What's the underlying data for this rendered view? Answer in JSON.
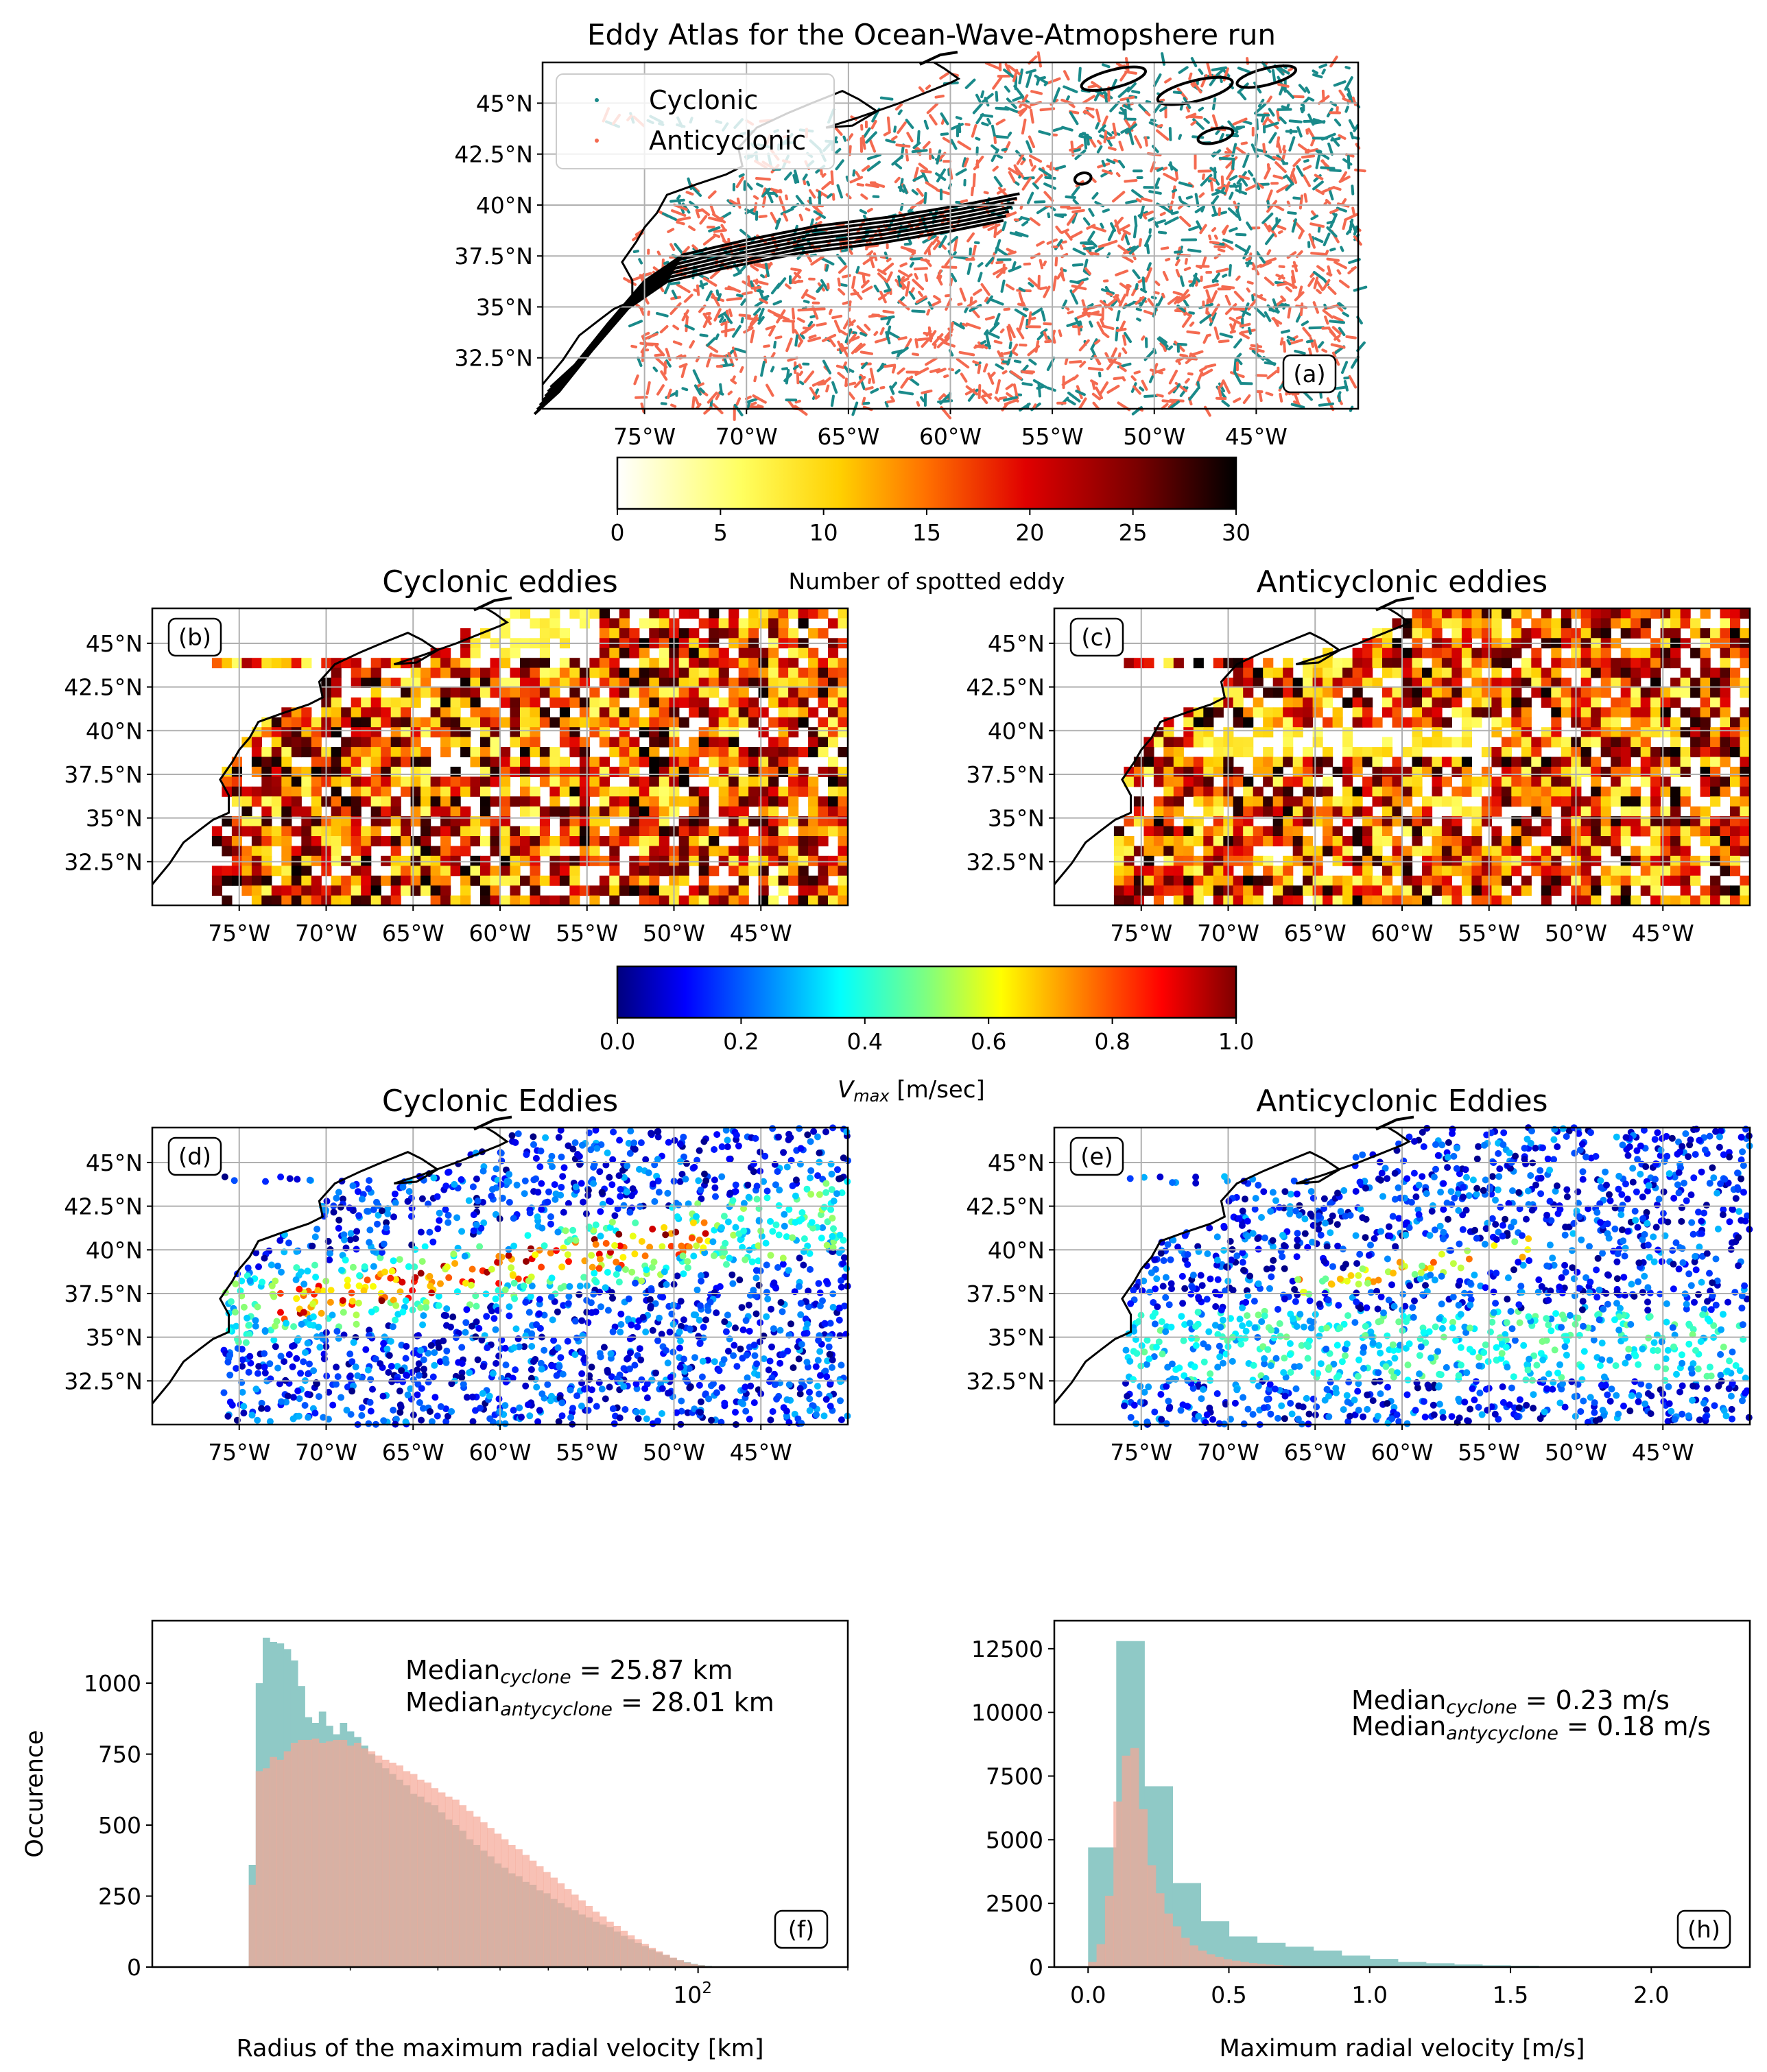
{
  "figure": {
    "title": "Eddy Atlas for the Ocean-Wave-Atmopshere run"
  },
  "colors": {
    "cyclonic": "#1a8a8a",
    "anticyclonic": "#f46a50",
    "hist_cyclone": "#8fc9c6",
    "hist_anticyclone": "#f5a796",
    "overlap": "#b7a092"
  },
  "map_axes": {
    "lon_ticks": [
      "75°W",
      "70°W",
      "65°W",
      "60°W",
      "55°W",
      "50°W",
      "45°W"
    ],
    "lat_ticks": [
      "45°N",
      "42.5°N",
      "40°N",
      "37.5°N",
      "35°N",
      "32.5°N"
    ],
    "lon_range": [
      -80,
      -40
    ],
    "lat_range": [
      30,
      47
    ]
  },
  "panel_a": {
    "label": "(a)",
    "legend": [
      "Cyclonic",
      "Anticyclonic"
    ]
  },
  "colorbar_count": {
    "label": "Number of spotted eddy",
    "ticks": [
      "0",
      "5",
      "10",
      "15",
      "20",
      "25",
      "30"
    ],
    "range": [
      0,
      30
    ],
    "colormap": "hot_r"
  },
  "panel_b": {
    "title": "Cyclonic eddies",
    "label": "(b)"
  },
  "panel_c": {
    "title": "Anticyclonic eddies",
    "label": "(c)"
  },
  "colorbar_vmax": {
    "label_main": "V",
    "label_sub": "max",
    "label_unit": " [m/sec]",
    "ticks": [
      "0.0",
      "0.2",
      "0.4",
      "0.6",
      "0.8",
      "1.0"
    ],
    "range": [
      0,
      1
    ],
    "colormap": "jet"
  },
  "panel_d": {
    "title": "Cyclonic Eddies",
    "label": "(d)"
  },
  "panel_e": {
    "title": "Anticyclonic Eddies",
    "label": "(e)"
  },
  "chart_data": [
    {
      "type": "bar",
      "panel": "(f)",
      "xlabel": "Radius of the maximum radial velocity [km]",
      "ylabel": "Occurence",
      "xscale": "log",
      "x_tick_label": "10",
      "x_tick_label_exp": "2",
      "x_tick_value": 100,
      "xlim": [
        8,
        200
      ],
      "ylim": [
        0,
        1220
      ],
      "yticks": [
        "0",
        "250",
        "500",
        "750",
        "1000"
      ],
      "annotation_cyclone_prefix": "Median",
      "annotation_cyclone_sub": "cyclone",
      "annotation_cyclone_value": " = 25.87 km",
      "annotation_anticyclone_prefix": "Median",
      "annotation_anticyclone_sub": "antycyclone",
      "annotation_anticyclone_value": " = 28.01 km",
      "x_range": [
        12.5,
        110
      ],
      "series": [
        {
          "name": "Cyclonic",
          "values": [
            360,
            1000,
            1160,
            1145,
            1140,
            1120,
            1080,
            990,
            880,
            860,
            900,
            850,
            820,
            860,
            830,
            810,
            780,
            750,
            720,
            700,
            680,
            660,
            640,
            610,
            600,
            580,
            570,
            545,
            520,
            500,
            480,
            450,
            430,
            410,
            390,
            365,
            350,
            330,
            320,
            300,
            290,
            270,
            260,
            240,
            225,
            210,
            200,
            185,
            175,
            160,
            150,
            140,
            125,
            110,
            98,
            85,
            74,
            62,
            52,
            42,
            32,
            24,
            17,
            11,
            7,
            4,
            2
          ]
        },
        {
          "name": "Anticyclonic",
          "values": [
            290,
            690,
            700,
            740,
            730,
            760,
            790,
            800,
            800,
            805,
            790,
            795,
            800,
            800,
            780,
            790,
            770,
            760,
            745,
            730,
            720,
            710,
            690,
            680,
            660,
            650,
            630,
            615,
            600,
            590,
            570,
            550,
            530,
            510,
            490,
            470,
            450,
            430,
            415,
            395,
            375,
            355,
            335,
            315,
            295,
            275,
            255,
            235,
            215,
            195,
            178,
            160,
            145,
            128,
            112,
            98,
            82,
            68,
            55,
            44,
            33,
            24,
            16,
            10,
            6,
            3,
            1
          ]
        }
      ]
    },
    {
      "type": "bar",
      "panel": "(h)",
      "xlabel": "Maximum radial velocity [m/s]",
      "ylabel": "",
      "xlim": [
        -0.12,
        2.35
      ],
      "ylim": [
        0,
        13600
      ],
      "xticks": [
        "0.0",
        "0.5",
        "1.0",
        "1.5",
        "2.0"
      ],
      "yticks": [
        "0",
        "2500",
        "5000",
        "7500",
        "10000",
        "12500"
      ],
      "annotation_cyclone_prefix": "Median",
      "annotation_cyclone_sub": "cyclone",
      "annotation_cyclone_value": " = 0.23 m/s",
      "annotation_anticyclone_prefix": "Median",
      "annotation_anticyclone_sub": "antycyclone",
      "annotation_anticyclone_value": " = 0.18 m/s",
      "series": [
        {
          "name": "Cyclonic",
          "bin_width": 0.1,
          "bins_start": [
            0.0,
            0.1,
            0.2,
            0.3,
            0.4,
            0.5,
            0.6,
            0.7,
            0.8,
            0.9,
            1.0,
            1.1,
            1.2,
            1.3,
            1.4,
            1.5,
            1.6,
            1.7,
            1.8,
            1.9,
            2.0,
            2.1
          ],
          "values": [
            4700,
            12800,
            7100,
            3300,
            1800,
            1200,
            950,
            800,
            650,
            450,
            320,
            200,
            150,
            100,
            70,
            50,
            30,
            20,
            10,
            8,
            5,
            3
          ]
        },
        {
          "name": "Anticyclonic",
          "bin_width": 0.03,
          "bins_start": [
            0.0,
            0.03,
            0.06,
            0.09,
            0.12,
            0.15,
            0.18,
            0.21,
            0.24,
            0.27,
            0.3,
            0.33,
            0.36,
            0.39,
            0.42,
            0.45,
            0.48,
            0.51,
            0.54,
            0.57,
            0.6,
            0.63,
            0.66,
            0.69,
            0.72,
            0.75,
            0.78,
            0.81
          ],
          "values": [
            200,
            900,
            2800,
            6500,
            8300,
            8600,
            6200,
            4000,
            2900,
            2100,
            1600,
            1150,
            850,
            650,
            500,
            400,
            310,
            250,
            200,
            160,
            130,
            100,
            80,
            60,
            45,
            35,
            25,
            15
          ]
        }
      ]
    }
  ]
}
